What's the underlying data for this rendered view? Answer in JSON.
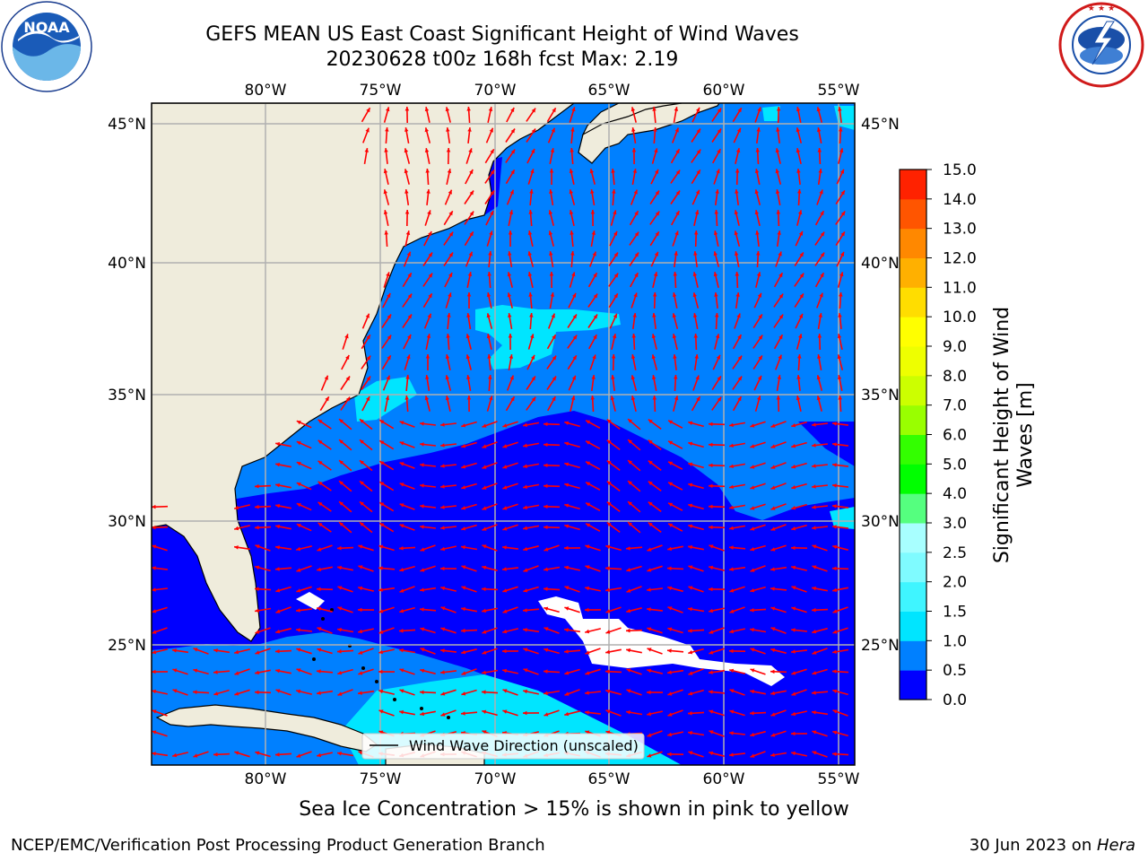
{
  "title": {
    "line1": "GEFS MEAN US East Coast Significant Height of Wind Waves",
    "line2": "20230628 t00z 168h fcst   Max: 2.19"
  },
  "map": {
    "lon_ticks": [
      "80°W",
      "75°W",
      "70°W",
      "65°W",
      "60°W",
      "55°W"
    ],
    "lat_ticks": [
      "45°N",
      "40°N",
      "35°N",
      "30°N",
      "25°N"
    ],
    "legend_label": "Wind Wave Direction (unscaled)",
    "arrow_color": "#ff0000",
    "land_color": "#efecdc",
    "gridline_color": "#b0b0b0"
  },
  "colorbar": {
    "label_line1": "Significant Height of Wind",
    "label_line2": "Waves [m]",
    "ticks": [
      "0.0",
      "0.5",
      "1.0",
      "1.5",
      "2.0",
      "2.5",
      "3.0",
      "4.0",
      "5.0",
      "6.0",
      "7.0",
      "8.0",
      "9.0",
      "10.0",
      "11.0",
      "12.0",
      "13.0",
      "14.0",
      "15.0"
    ],
    "colors": [
      "#0000ff",
      "#0080ff",
      "#00e5ff",
      "#3ff5ff",
      "#7ffbff",
      "#a8ffff",
      "#55ff7f",
      "#00ff00",
      "#33ff00",
      "#99ff00",
      "#ccff00",
      "#eeff00",
      "#ffff00",
      "#ffdd00",
      "#ffb000",
      "#ff8800",
      "#ff5500",
      "#ff2200",
      "#ff0000"
    ]
  },
  "subtitle": "Sea Ice Concentration > 15% is shown in pink to yellow",
  "footer": {
    "left": "NCEP/EMC/Verification Post Processing Product Generation Branch",
    "date": "30 Jun 2023 on ",
    "machine": "Hera"
  },
  "logos": {
    "noaa_text": "NOAA",
    "noaa_ring_text": "NATIONAL OCEANIC AND ATMOSPHERIC ADMINISTRATION · U.S. DEPARTMENT OF COMMERCE",
    "nws_ring_text": "NATIONAL WEATHER SERVICE"
  },
  "chart_data": {
    "type": "heatmap",
    "title": "GEFS MEAN US East Coast Significant Height of Wind Waves",
    "lon_range": [
      -85,
      -54
    ],
    "lat_range": [
      20.5,
      46
    ],
    "max_value": 2.19,
    "units": "m",
    "colorbar_range": [
      0,
      15
    ]
  }
}
